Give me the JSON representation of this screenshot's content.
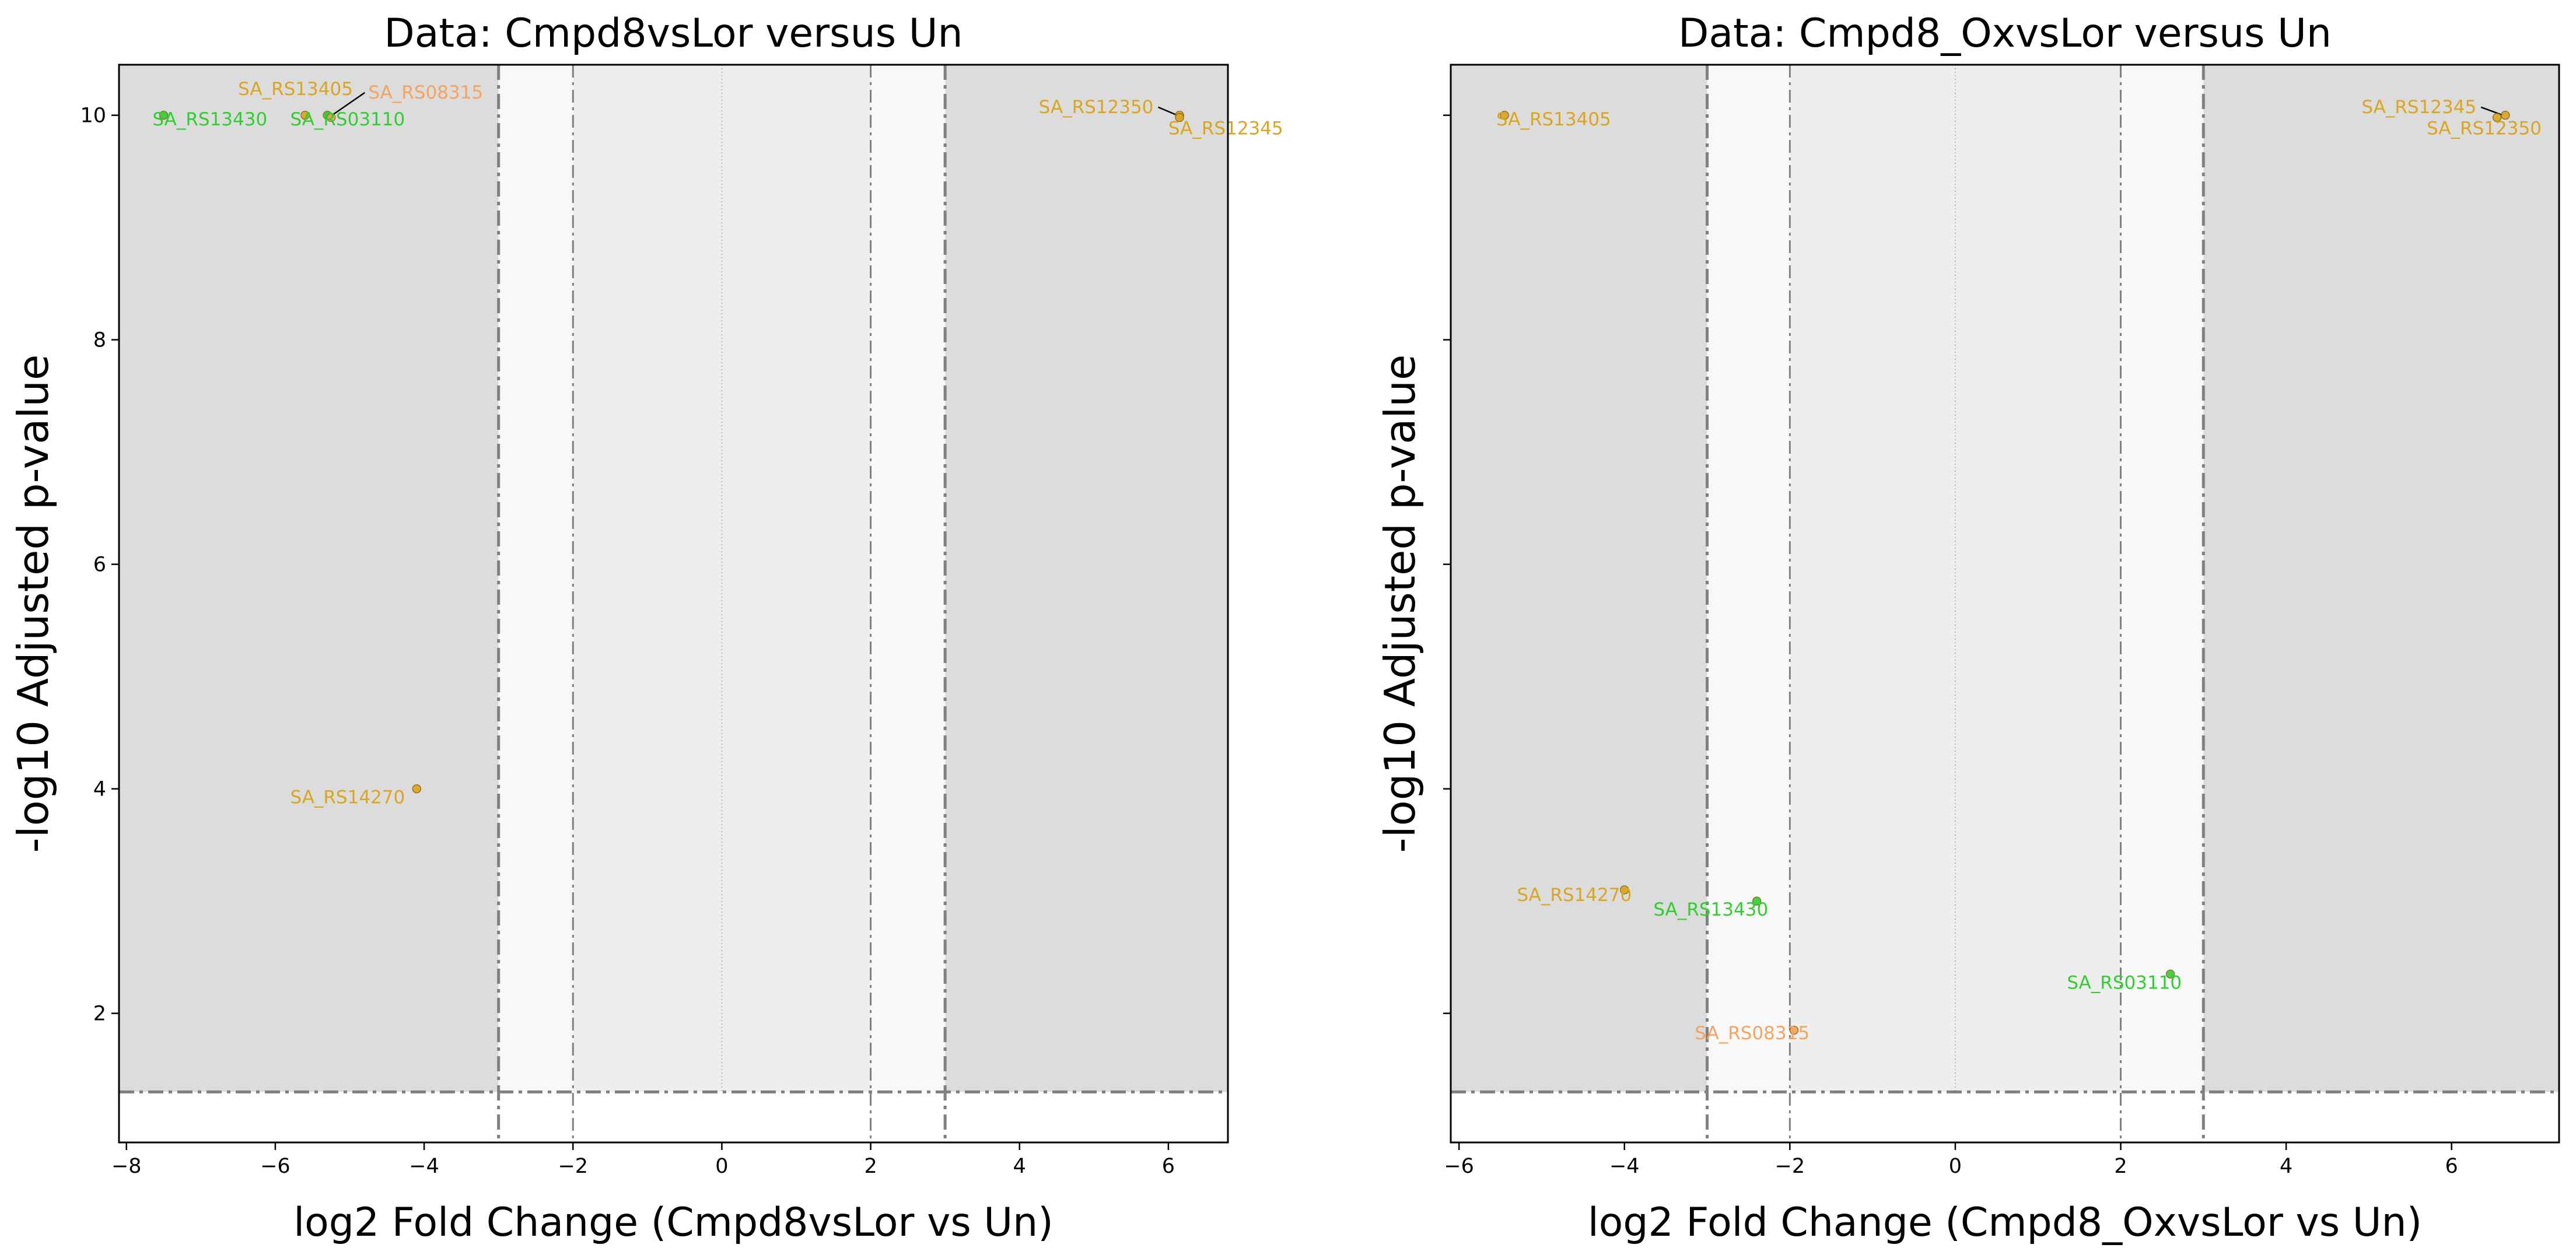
{
  "colors": {
    "orange": "#DAA520",
    "green": "#32CD32",
    "salmon": "#F4A460",
    "outer_shade": "#DCDCDC",
    "middle_shade": "#EEEEEE",
    "inner_shade": "#F8F8F8",
    "threshold_line": "#808080"
  },
  "chart_data": [
    {
      "type": "scatter",
      "title": "Data: Cmpd8vsLor versus Un",
      "xlabel": "log2 Fold Change (Cmpd8vsLor vs Un)",
      "ylabel": "-log10 Adjusted p-value",
      "xlim": [
        -8.1,
        6.8
      ],
      "ylim": [
        0.85,
        10.45
      ],
      "xticks": [
        -8,
        -6,
        -4,
        -2,
        0,
        2,
        4,
        6
      ],
      "yticks": [
        2,
        4,
        6,
        8,
        10
      ],
      "show_ytick_labels": true,
      "fold_change_thresholds": [
        -3,
        -2,
        2,
        3
      ],
      "pvalue_threshold": 1.3,
      "points": [
        {
          "name": "SA_RS13430",
          "x": -7.5,
          "y": 10.0,
          "color": "green"
        },
        {
          "name": "SA_RS13405",
          "x": -5.6,
          "y": 10.0,
          "color": "orange"
        },
        {
          "name": "SA_RS03110",
          "x": -5.3,
          "y": 10.0,
          "color": "green"
        },
        {
          "name": "SA_RS08315",
          "x": -5.25,
          "y": 9.98,
          "color": "salmon"
        },
        {
          "name": "SA_RS12350",
          "x": 6.15,
          "y": 10.0,
          "color": "orange"
        },
        {
          "name": "SA_RS12345",
          "x": 6.15,
          "y": 9.98,
          "color": "orange"
        },
        {
          "name": "SA_RS14270",
          "x": -4.1,
          "y": 4.0,
          "color": "orange"
        }
      ],
      "labels": [
        {
          "text": "SA_RS13405",
          "x": -6.5,
          "y": 10.18,
          "color": "orange",
          "anchor": "start",
          "leader": false
        },
        {
          "text": "SA_RS08315",
          "x": -4.75,
          "y": 10.15,
          "color": "salmon",
          "anchor": "start",
          "leader": true
        },
        {
          "text": "SA_RS13430",
          "x": -7.65,
          "y": 9.91,
          "color": "green",
          "anchor": "start",
          "leader": false
        },
        {
          "text": "SA_RS03110",
          "x": -5.8,
          "y": 9.91,
          "color": "green",
          "anchor": "start",
          "leader": false
        },
        {
          "text": "SA_RS12350",
          "x": 5.8,
          "y": 10.02,
          "color": "orange",
          "anchor": "end",
          "leader": true
        },
        {
          "text": "SA_RS12345",
          "x": 6.0,
          "y": 9.83,
          "color": "orange",
          "anchor": "start",
          "leader": false
        },
        {
          "text": "SA_RS14270",
          "x": -5.8,
          "y": 3.87,
          "color": "orange",
          "anchor": "start",
          "leader": false
        }
      ]
    },
    {
      "type": "scatter",
      "title": "Data: Cmpd8_OxvsLor versus Un",
      "xlabel": "log2 Fold Change (Cmpd8_OxvsLor vs Un)",
      "ylabel": "-log10 Adjusted p-value",
      "xlim": [
        -6.1,
        7.3
      ],
      "ylim": [
        0.85,
        10.45
      ],
      "xticks": [
        -6,
        -4,
        -2,
        0,
        2,
        4,
        6
      ],
      "yticks": [
        2,
        4,
        6,
        8,
        10
      ],
      "show_ytick_labels": false,
      "fold_change_thresholds": [
        -3,
        -2,
        2,
        3
      ],
      "pvalue_threshold": 1.3,
      "points": [
        {
          "name": "SA_RS13405",
          "x": -5.45,
          "y": 10.0,
          "color": "orange"
        },
        {
          "name": "SA_RS12345",
          "x": 6.65,
          "y": 10.0,
          "color": "orange"
        },
        {
          "name": "SA_RS12350",
          "x": 6.55,
          "y": 9.98,
          "color": "orange"
        },
        {
          "name": "SA_RS14270",
          "x": -4.0,
          "y": 3.1,
          "color": "orange"
        },
        {
          "name": "SA_RS13430",
          "x": -2.4,
          "y": 3.0,
          "color": "green"
        },
        {
          "name": "SA_RS03110",
          "x": 2.6,
          "y": 2.35,
          "color": "green"
        },
        {
          "name": "SA_RS08315",
          "x": -1.95,
          "y": 1.85,
          "color": "salmon"
        }
      ],
      "labels": [
        {
          "text": "SA_RS13405",
          "x": -5.55,
          "y": 9.91,
          "color": "orange",
          "anchor": "start",
          "leader": false
        },
        {
          "text": "SA_RS12345",
          "x": 6.3,
          "y": 10.02,
          "color": "orange",
          "anchor": "end",
          "leader": true
        },
        {
          "text": "SA_RS12350",
          "x": 5.7,
          "y": 9.83,
          "color": "orange",
          "anchor": "start",
          "leader": false
        },
        {
          "text": "SA_RS14270",
          "x": -5.3,
          "y": 3.0,
          "color": "orange",
          "anchor": "start",
          "leader": false
        },
        {
          "text": "SA_RS13430",
          "x": -3.65,
          "y": 2.87,
          "color": "green",
          "anchor": "start",
          "leader": false
        },
        {
          "text": "SA_RS03110",
          "x": 1.35,
          "y": 2.22,
          "color": "green",
          "anchor": "start",
          "leader": false
        },
        {
          "text": "SA_RS08315",
          "x": -3.15,
          "y": 1.77,
          "color": "salmon",
          "anchor": "start",
          "leader": false
        }
      ]
    }
  ]
}
